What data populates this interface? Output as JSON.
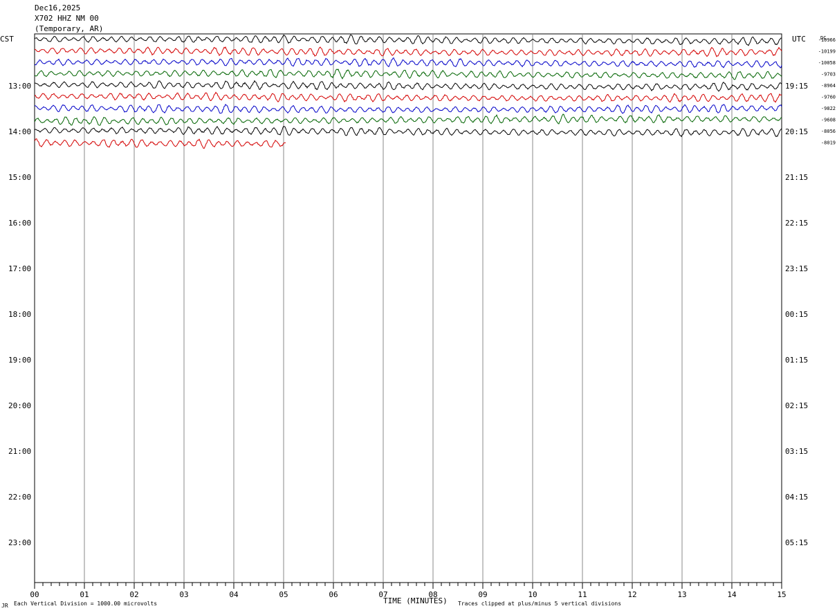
{
  "header": {
    "date": "Dec16,2025",
    "station": "X702 HHZ NM 00",
    "location": "(Temporary, AR)"
  },
  "left_zone": "CST",
  "right_zone": "UTC",
  "dc_label": "DC",
  "footer": {
    "scale_note": "Each Vertical Division = 1000.00 microvolts",
    "xlabel": "TIME (MINUTES)",
    "clip_note": "Traces clipped at plus/minus 5 vertical divisions",
    "mark": "JR"
  },
  "colors": {
    "cycle": [
      "#000000",
      "#d40000",
      "#0000c8",
      "#006400"
    ],
    "grid": "#888888"
  },
  "chart_data": {
    "type": "line",
    "title": "",
    "xlabel": "TIME (MINUTES)",
    "xlim": [
      0,
      15
    ],
    "x_ticks": [
      "00",
      "01",
      "02",
      "03",
      "04",
      "05",
      "06",
      "07",
      "08",
      "09",
      "10",
      "11",
      "12",
      "13",
      "14",
      "15"
    ],
    "rows_per_hour": 4,
    "row_minutes": 15,
    "left_hour_labels": [
      "13:00",
      "14:00",
      "15:00",
      "16:00",
      "17:00",
      "18:00",
      "19:00",
      "20:00",
      "21:00",
      "22:00",
      "23:00"
    ],
    "right_hour_labels": [
      "19:15",
      "20:15",
      "21:15",
      "22:15",
      "23:15",
      "00:15",
      "01:15",
      "02:15",
      "03:15",
      "04:15",
      "05:15"
    ],
    "traces": [
      {
        "dc": "-10966",
        "minutes": 15
      },
      {
        "dc": "-10199",
        "minutes": 15
      },
      {
        "dc": "-10058",
        "minutes": 15
      },
      {
        "dc": "-9703",
        "minutes": 15
      },
      {
        "dc": "-8964",
        "minutes": 15
      },
      {
        "dc": "-9760",
        "minutes": 15
      },
      {
        "dc": "-9822",
        "minutes": 15
      },
      {
        "dc": "-9608",
        "minutes": 15
      },
      {
        "dc": "-8056",
        "minutes": 15
      },
      {
        "dc": "-8019",
        "minutes": 5.05
      }
    ]
  }
}
